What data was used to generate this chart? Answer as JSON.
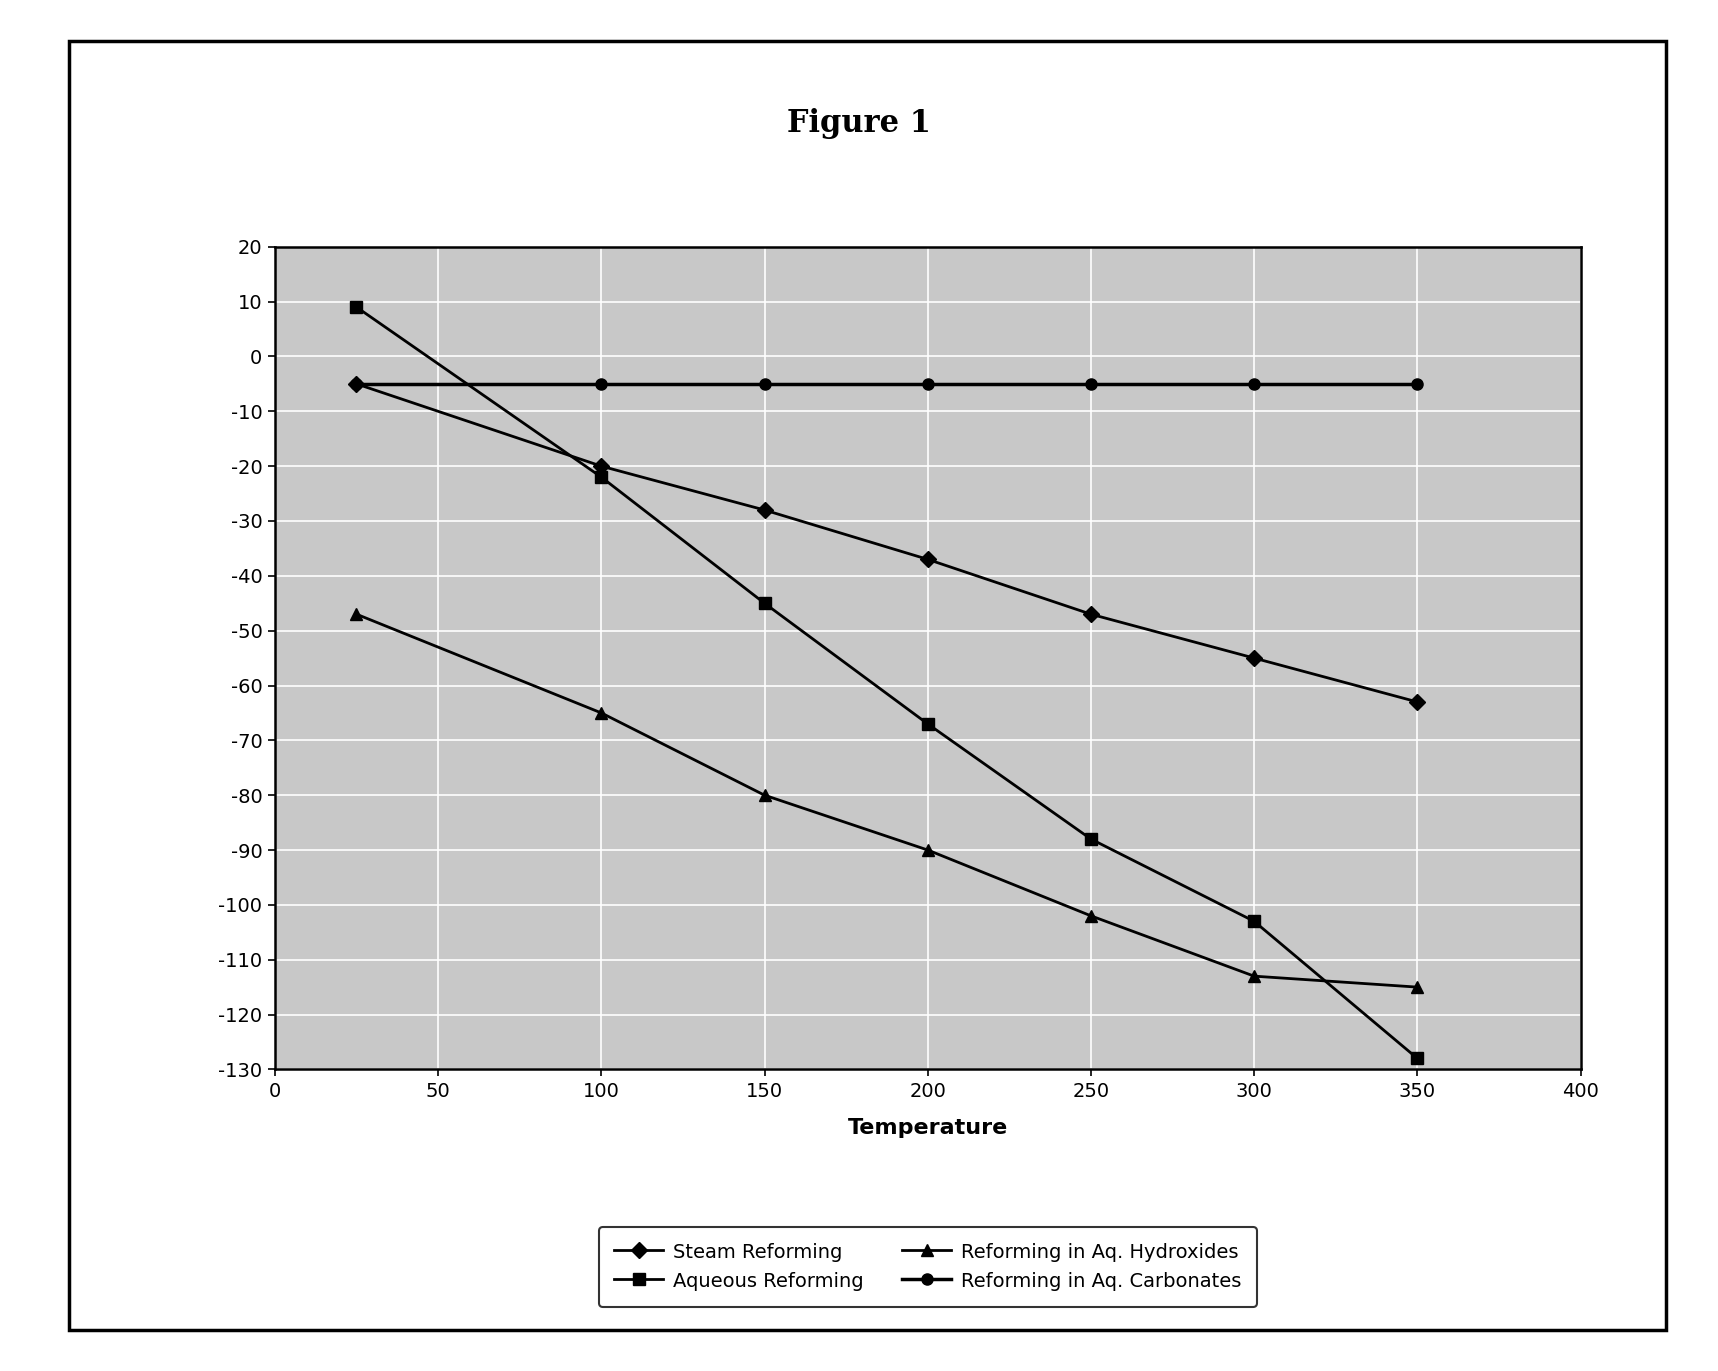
{
  "title": "Figure 1",
  "xlabel": "Temperature",
  "xlim": [
    0,
    400
  ],
  "ylim": [
    -130,
    20
  ],
  "xticks": [
    0,
    50,
    100,
    150,
    200,
    250,
    300,
    350,
    400
  ],
  "yticks": [
    -130,
    -120,
    -110,
    -100,
    -90,
    -80,
    -70,
    -60,
    -50,
    -40,
    -30,
    -20,
    -10,
    0,
    10,
    20
  ],
  "series": [
    {
      "label": "Steam Reforming",
      "x": [
        25,
        100,
        150,
        200,
        250,
        300,
        350
      ],
      "y": [
        -5,
        -20,
        -28,
        -37,
        -47,
        -55,
        -63
      ],
      "marker": "D",
      "linewidth": 2.0,
      "markersize": 8
    },
    {
      "label": "Aqueous Reforming",
      "x": [
        25,
        100,
        150,
        200,
        250,
        300,
        350
      ],
      "y": [
        9,
        -22,
        -45,
        -67,
        -88,
        -103,
        -128
      ],
      "marker": "s",
      "linewidth": 2.0,
      "markersize": 8
    },
    {
      "label": "Reforming in Aq. Hydroxides",
      "x": [
        25,
        100,
        150,
        200,
        250,
        300,
        350
      ],
      "y": [
        -47,
        -65,
        -80,
        -90,
        -102,
        -113,
        -115
      ],
      "marker": "^",
      "linewidth": 2.0,
      "markersize": 9
    },
    {
      "label": "Reforming in Aq. Carbonates",
      "x": [
        25,
        100,
        150,
        200,
        250,
        300,
        350
      ],
      "y": [
        -5,
        -5,
        -5,
        -5,
        -5,
        -5,
        -5
      ],
      "marker": "o",
      "linewidth": 2.5,
      "markersize": 8
    }
  ],
  "background_color": "#ffffff",
  "plot_bg_color": "#c8c8c8",
  "grid_color": "#ffffff",
  "title_fontsize": 22,
  "label_fontsize": 16,
  "tick_fontsize": 14,
  "legend_fontsize": 14
}
